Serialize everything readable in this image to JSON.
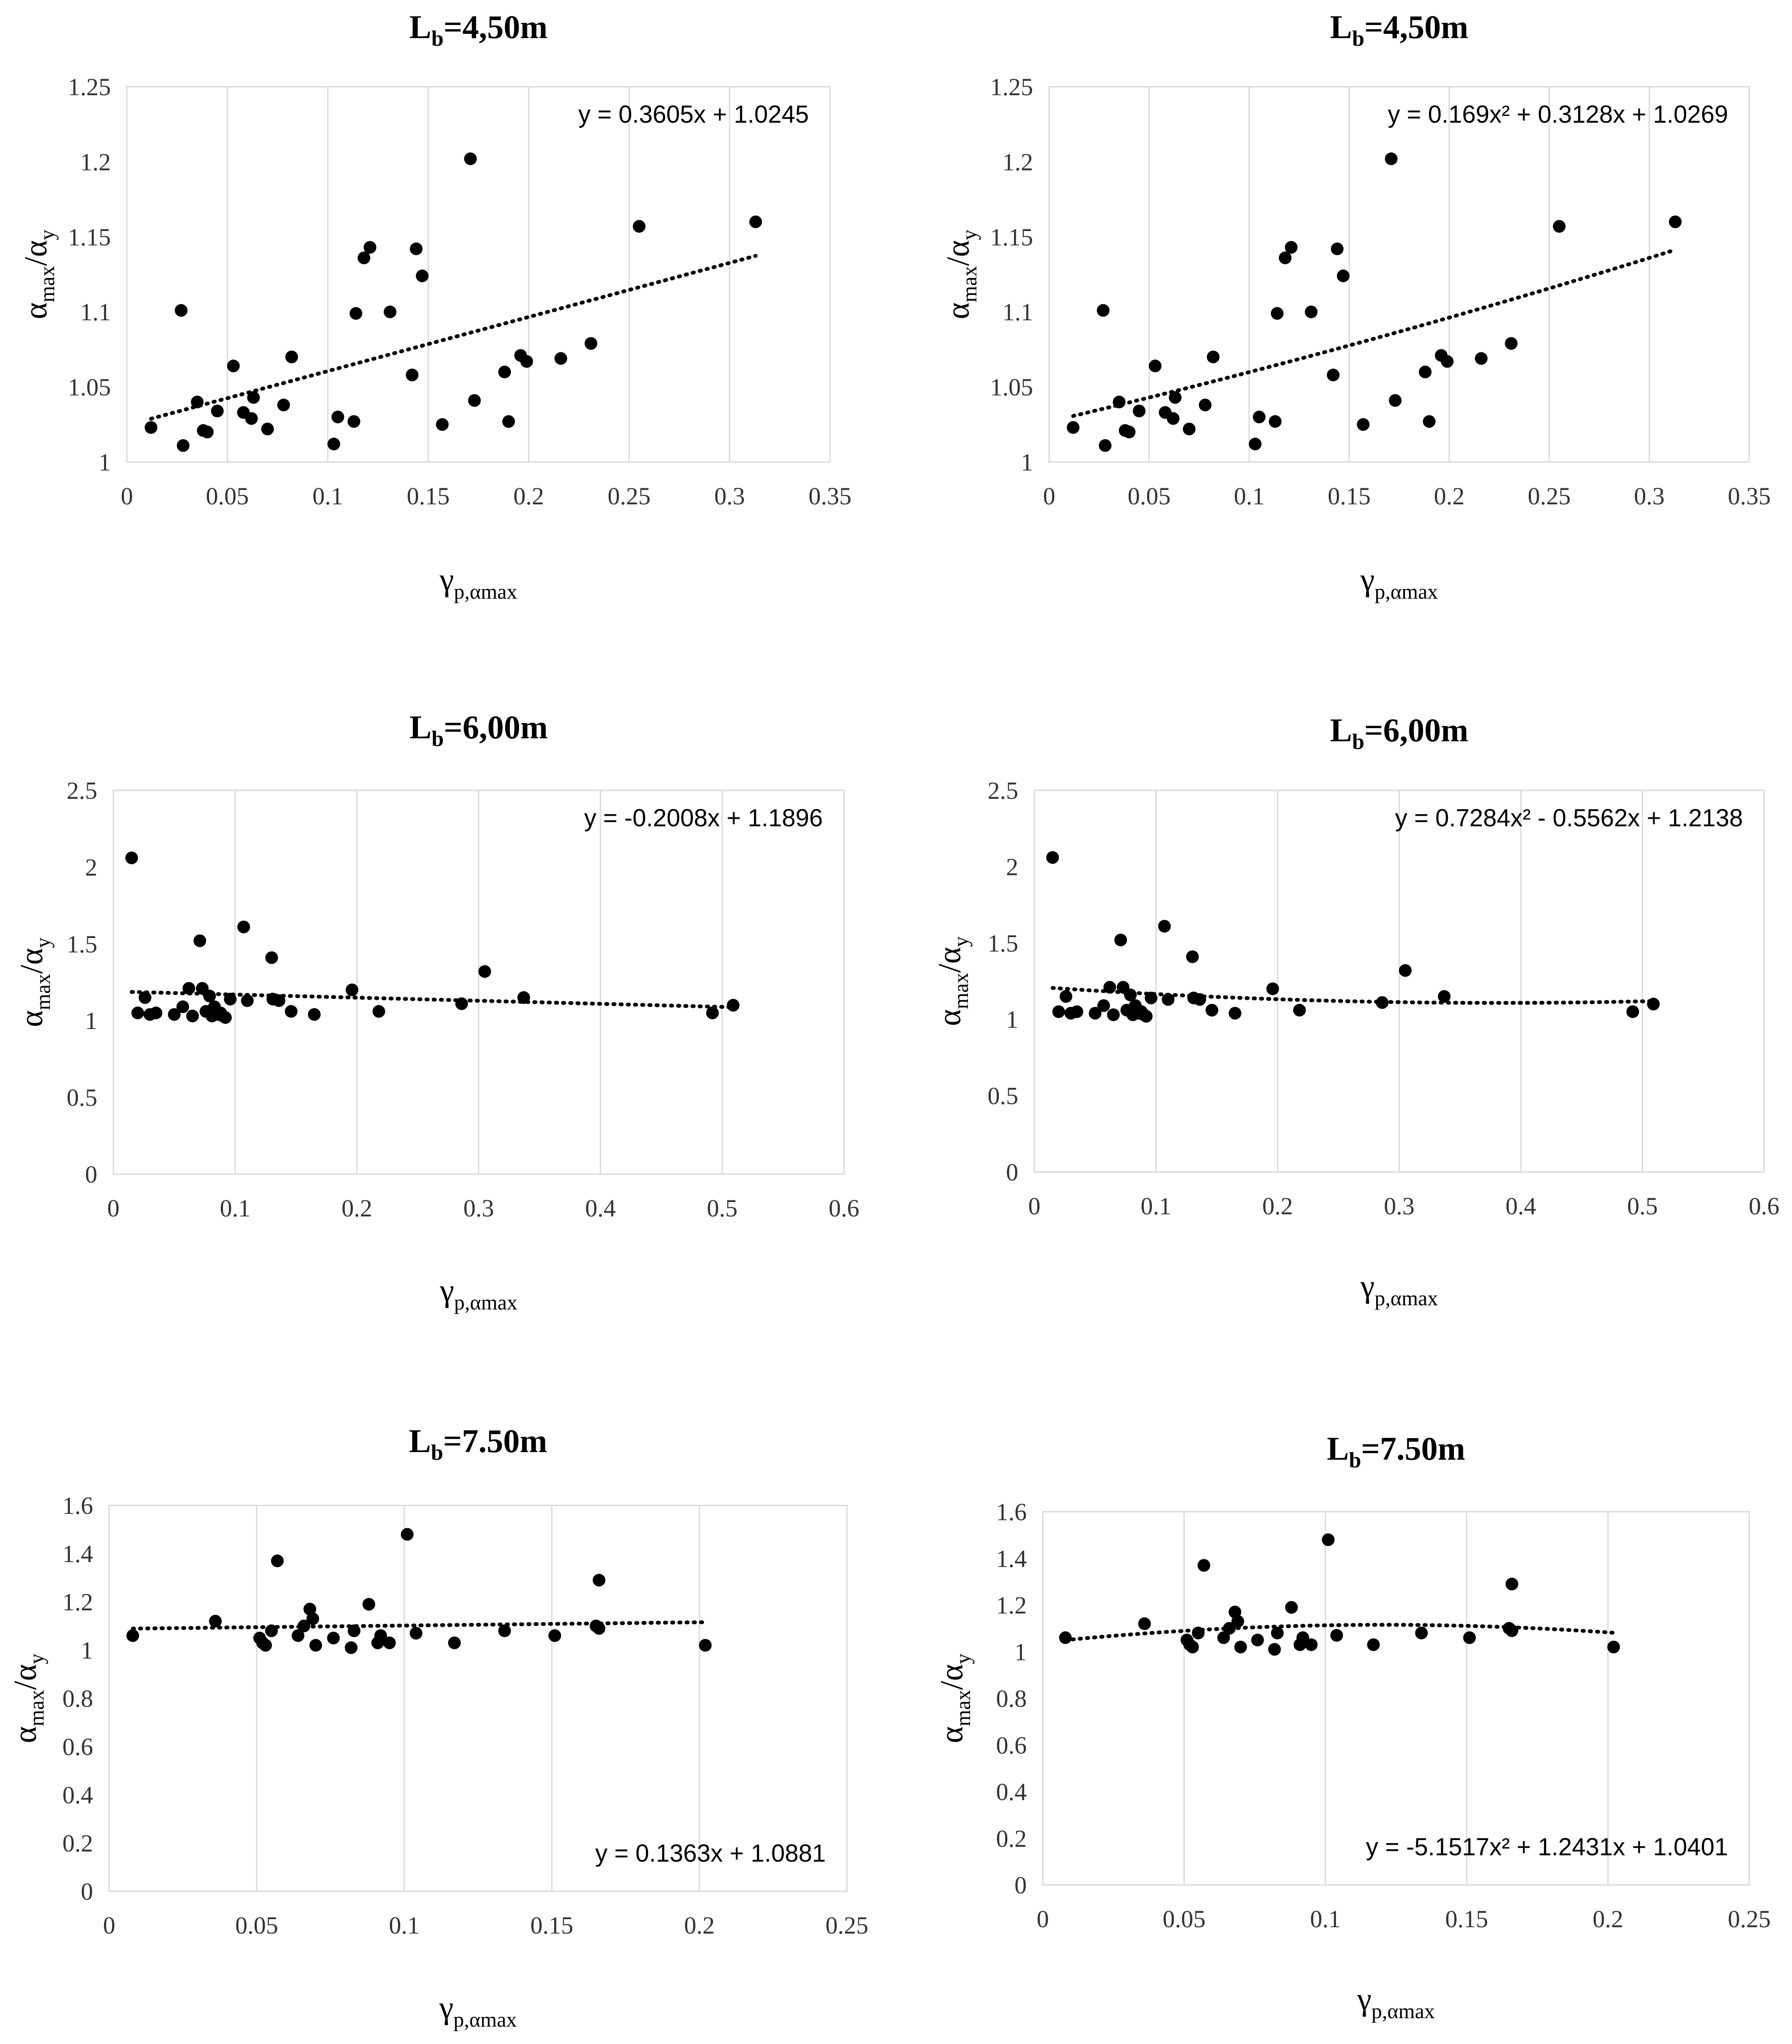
{
  "chart_data": [
    {
      "id": "lb450_linear",
      "type": "scatter",
      "title": "4,50m",
      "title_symbol": "L",
      "title_subscript": "b",
      "xlabel_symbol": "γ",
      "xlabel_subscript": "p,αmax",
      "ylabel_numerator_symbol": "α",
      "ylabel_numerator_subscript": "max",
      "ylabel_slash": "/",
      "ylabel_denominator_symbol": "α",
      "ylabel_denominator_subscript": "y",
      "xlim": [
        0,
        0.35
      ],
      "ylim": [
        1,
        1.25
      ],
      "xticks": [
        0,
        0.05,
        0.1,
        0.15,
        0.2,
        0.25,
        0.3,
        0.35
      ],
      "yticks": [
        1,
        1.05,
        1.1,
        1.15,
        1.2,
        1.25
      ],
      "xtick_labels": [
        "0",
        "0.05",
        "0.1",
        "0.15",
        "0.2",
        "0.25",
        "0.3",
        "0.35"
      ],
      "ytick_labels": [
        "1",
        "1.05",
        "1.1",
        "1.15",
        "1.2",
        "1.25"
      ],
      "grid": "vertical",
      "equation": "y = 0.3605x + 1.0245",
      "equation_position": "top-right",
      "trendline": {
        "kind": "linear",
        "coef": [
          0.3605,
          1.0245
        ],
        "x_range": [
          0.012,
          0.313
        ]
      },
      "points": [
        [
          0.012,
          1.023
        ],
        [
          0.027,
          1.101
        ],
        [
          0.028,
          1.011
        ],
        [
          0.035,
          1.04
        ],
        [
          0.038,
          1.021
        ],
        [
          0.04,
          1.02
        ],
        [
          0.045,
          1.034
        ],
        [
          0.053,
          1.064
        ],
        [
          0.058,
          1.033
        ],
        [
          0.062,
          1.029
        ],
        [
          0.063,
          1.043
        ],
        [
          0.07,
          1.022
        ],
        [
          0.078,
          1.038
        ],
        [
          0.082,
          1.07
        ],
        [
          0.103,
          1.012
        ],
        [
          0.105,
          1.03
        ],
        [
          0.113,
          1.027
        ],
        [
          0.114,
          1.099
        ],
        [
          0.118,
          1.136
        ],
        [
          0.121,
          1.143
        ],
        [
          0.131,
          1.1
        ],
        [
          0.142,
          1.058
        ],
        [
          0.144,
          1.142
        ],
        [
          0.147,
          1.124
        ],
        [
          0.157,
          1.025
        ],
        [
          0.171,
          1.202
        ],
        [
          0.173,
          1.041
        ],
        [
          0.188,
          1.06
        ],
        [
          0.19,
          1.027
        ],
        [
          0.196,
          1.071
        ],
        [
          0.199,
          1.067
        ],
        [
          0.216,
          1.069
        ],
        [
          0.231,
          1.079
        ],
        [
          0.255,
          1.157
        ],
        [
          0.313,
          1.16
        ]
      ]
    },
    {
      "id": "lb450_poly",
      "type": "scatter",
      "title": "4,50m",
      "title_symbol": "L",
      "title_subscript": "b",
      "xlabel_symbol": "γ",
      "xlabel_subscript": "p,αmax",
      "ylabel_numerator_symbol": "α",
      "ylabel_numerator_subscript": "max",
      "ylabel_slash": "/",
      "ylabel_denominator_symbol": "α",
      "ylabel_denominator_subscript": "y",
      "xlim": [
        0,
        0.35
      ],
      "ylim": [
        1,
        1.25
      ],
      "xticks": [
        0,
        0.05,
        0.1,
        0.15,
        0.2,
        0.25,
        0.3,
        0.35
      ],
      "yticks": [
        1,
        1.05,
        1.1,
        1.15,
        1.2,
        1.25
      ],
      "xtick_labels": [
        "0",
        "0.05",
        "0.1",
        "0.15",
        "0.2",
        "0.25",
        "0.3",
        "0.35"
      ],
      "ytick_labels": [
        "1",
        "1.05",
        "1.1",
        "1.15",
        "1.2",
        "1.25"
      ],
      "grid": "vertical",
      "equation": "y = 0.169x² + 0.3128x + 1.0269",
      "equation_position": "top-right",
      "trendline": {
        "kind": "poly2",
        "coef": [
          0.169,
          0.3128,
          1.0269
        ],
        "x_range": [
          0.012,
          0.313
        ]
      },
      "points": [
        [
          0.012,
          1.023
        ],
        [
          0.027,
          1.101
        ],
        [
          0.028,
          1.011
        ],
        [
          0.035,
          1.04
        ],
        [
          0.038,
          1.021
        ],
        [
          0.04,
          1.02
        ],
        [
          0.045,
          1.034
        ],
        [
          0.053,
          1.064
        ],
        [
          0.058,
          1.033
        ],
        [
          0.062,
          1.029
        ],
        [
          0.063,
          1.043
        ],
        [
          0.07,
          1.022
        ],
        [
          0.078,
          1.038
        ],
        [
          0.082,
          1.07
        ],
        [
          0.103,
          1.012
        ],
        [
          0.105,
          1.03
        ],
        [
          0.113,
          1.027
        ],
        [
          0.114,
          1.099
        ],
        [
          0.118,
          1.136
        ],
        [
          0.121,
          1.143
        ],
        [
          0.131,
          1.1
        ],
        [
          0.142,
          1.058
        ],
        [
          0.144,
          1.142
        ],
        [
          0.147,
          1.124
        ],
        [
          0.157,
          1.025
        ],
        [
          0.171,
          1.202
        ],
        [
          0.173,
          1.041
        ],
        [
          0.188,
          1.06
        ],
        [
          0.19,
          1.027
        ],
        [
          0.196,
          1.071
        ],
        [
          0.199,
          1.067
        ],
        [
          0.216,
          1.069
        ],
        [
          0.231,
          1.079
        ],
        [
          0.255,
          1.157
        ],
        [
          0.313,
          1.16
        ]
      ]
    },
    {
      "id": "lb600_linear",
      "type": "scatter",
      "title": "6,00m",
      "title_symbol": "L",
      "title_subscript": "b",
      "xlabel_symbol": "γ",
      "xlabel_subscript": "p,αmax",
      "ylabel_numerator_symbol": "α",
      "ylabel_numerator_subscript": "max",
      "ylabel_slash": "/",
      "ylabel_denominator_symbol": "α",
      "ylabel_denominator_subscript": "y",
      "xlim": [
        0,
        0.6
      ],
      "ylim": [
        0,
        2.5
      ],
      "xticks": [
        0,
        0.1,
        0.2,
        0.3,
        0.4,
        0.5,
        0.6
      ],
      "yticks": [
        0,
        0.5,
        1,
        1.5,
        2,
        2.5
      ],
      "xtick_labels": [
        "0",
        "0.1",
        "0.2",
        "0.3",
        "0.4",
        "0.5",
        "0.6"
      ],
      "ytick_labels": [
        "0",
        "0.5",
        "1",
        "1.5",
        "2",
        "2.5"
      ],
      "grid": "vertical",
      "equation": "y = -0.2008x + 1.1896",
      "equation_position": "top-right",
      "trendline": {
        "kind": "linear",
        "coef": [
          -0.2008,
          1.1896
        ],
        "x_range": [
          0.015,
          0.509
        ]
      },
      "points": [
        [
          0.015,
          2.06
        ],
        [
          0.02,
          1.05
        ],
        [
          0.026,
          1.15
        ],
        [
          0.03,
          1.04
        ],
        [
          0.035,
          1.05
        ],
        [
          0.05,
          1.04
        ],
        [
          0.057,
          1.09
        ],
        [
          0.062,
          1.21
        ],
        [
          0.065,
          1.03
        ],
        [
          0.071,
          1.52
        ],
        [
          0.073,
          1.21
        ],
        [
          0.076,
          1.06
        ],
        [
          0.079,
          1.16
        ],
        [
          0.081,
          1.03
        ],
        [
          0.083,
          1.09
        ],
        [
          0.085,
          1.04
        ],
        [
          0.088,
          1.05
        ],
        [
          0.09,
          1.03
        ],
        [
          0.092,
          1.02
        ],
        [
          0.096,
          1.14
        ],
        [
          0.107,
          1.61
        ],
        [
          0.11,
          1.13
        ],
        [
          0.13,
          1.41
        ],
        [
          0.131,
          1.14
        ],
        [
          0.136,
          1.13
        ],
        [
          0.146,
          1.06
        ],
        [
          0.165,
          1.04
        ],
        [
          0.196,
          1.2
        ],
        [
          0.218,
          1.06
        ],
        [
          0.286,
          1.11
        ],
        [
          0.305,
          1.32
        ],
        [
          0.337,
          1.15
        ],
        [
          0.492,
          1.05
        ],
        [
          0.509,
          1.1
        ]
      ]
    },
    {
      "id": "lb600_poly",
      "type": "scatter",
      "title": "6,00m",
      "title_symbol": "L",
      "title_subscript": "b",
      "xlabel_symbol": "γ",
      "xlabel_subscript": "p,αmax",
      "ylabel_numerator_symbol": "α",
      "ylabel_numerator_subscript": "max",
      "ylabel_slash": "/",
      "ylabel_denominator_symbol": "α",
      "ylabel_denominator_subscript": "y",
      "xlim": [
        0,
        0.6
      ],
      "ylim": [
        0,
        2.5
      ],
      "xticks": [
        0,
        0.1,
        0.2,
        0.3,
        0.4,
        0.5,
        0.6
      ],
      "yticks": [
        0,
        0.5,
        1,
        1.5,
        2,
        2.5
      ],
      "xtick_labels": [
        "0",
        "0.1",
        "0.2",
        "0.3",
        "0.4",
        "0.5",
        "0.6"
      ],
      "ytick_labels": [
        "0",
        "0.5",
        "1",
        "1.5",
        "2",
        "2.5"
      ],
      "grid": "vertical",
      "equation": "y = 0.7284x² - 0.5562x + 1.2138",
      "equation_position": "top-right",
      "trendline": {
        "kind": "poly2",
        "coef": [
          0.7284,
          -0.5562,
          1.2138
        ],
        "x_range": [
          0.015,
          0.509
        ]
      },
      "points": [
        [
          0.015,
          2.06
        ],
        [
          0.02,
          1.05
        ],
        [
          0.026,
          1.15
        ],
        [
          0.03,
          1.04
        ],
        [
          0.035,
          1.05
        ],
        [
          0.05,
          1.04
        ],
        [
          0.057,
          1.09
        ],
        [
          0.062,
          1.21
        ],
        [
          0.065,
          1.03
        ],
        [
          0.071,
          1.52
        ],
        [
          0.073,
          1.21
        ],
        [
          0.076,
          1.06
        ],
        [
          0.079,
          1.16
        ],
        [
          0.081,
          1.03
        ],
        [
          0.083,
          1.09
        ],
        [
          0.085,
          1.04
        ],
        [
          0.088,
          1.05
        ],
        [
          0.09,
          1.03
        ],
        [
          0.092,
          1.02
        ],
        [
          0.096,
          1.14
        ],
        [
          0.107,
          1.61
        ],
        [
          0.11,
          1.13
        ],
        [
          0.13,
          1.41
        ],
        [
          0.131,
          1.14
        ],
        [
          0.136,
          1.13
        ],
        [
          0.146,
          1.06
        ],
        [
          0.165,
          1.04
        ],
        [
          0.196,
          1.2
        ],
        [
          0.218,
          1.06
        ],
        [
          0.286,
          1.11
        ],
        [
          0.305,
          1.32
        ],
        [
          0.337,
          1.15
        ],
        [
          0.492,
          1.05
        ],
        [
          0.509,
          1.1
        ]
      ]
    },
    {
      "id": "lb750_linear",
      "type": "scatter",
      "title": "7.50m",
      "title_symbol": "L",
      "title_subscript": "b",
      "xlabel_symbol": "γ",
      "xlabel_subscript": "p,αmax",
      "ylabel_numerator_symbol": "α",
      "ylabel_numerator_subscript": "max",
      "ylabel_slash": "/",
      "ylabel_denominator_symbol": "α",
      "ylabel_denominator_subscript": "y",
      "xlim": [
        0,
        0.25
      ],
      "ylim": [
        0,
        1.6
      ],
      "xticks": [
        0,
        0.05,
        0.1,
        0.15,
        0.2,
        0.25
      ],
      "yticks": [
        0,
        0.2,
        0.4,
        0.6,
        0.8,
        1,
        1.2,
        1.4,
        1.6
      ],
      "xtick_labels": [
        "0",
        "0.05",
        "0.1",
        "0.15",
        "0.2",
        "0.25"
      ],
      "ytick_labels": [
        "0",
        "0.2",
        "0.4",
        "0.6",
        "0.8",
        "1",
        "1.2",
        "1.4",
        "1.6"
      ],
      "grid": "vertical",
      "equation": "y = 0.1363x + 1.0881",
      "equation_position": "bottom-right",
      "trendline": {
        "kind": "linear",
        "coef": [
          0.1363,
          1.0881
        ],
        "x_range": [
          0.008,
          0.202
        ]
      },
      "points": [
        [
          0.008,
          1.06
        ],
        [
          0.036,
          1.12
        ],
        [
          0.051,
          1.05
        ],
        [
          0.052,
          1.03
        ],
        [
          0.053,
          1.02
        ],
        [
          0.055,
          1.08
        ],
        [
          0.057,
          1.37
        ],
        [
          0.064,
          1.06
        ],
        [
          0.066,
          1.1
        ],
        [
          0.068,
          1.17
        ],
        [
          0.069,
          1.13
        ],
        [
          0.07,
          1.02
        ],
        [
          0.076,
          1.05
        ],
        [
          0.082,
          1.01
        ],
        [
          0.083,
          1.08
        ],
        [
          0.088,
          1.19
        ],
        [
          0.091,
          1.03
        ],
        [
          0.092,
          1.06
        ],
        [
          0.095,
          1.03
        ],
        [
          0.101,
          1.48
        ],
        [
          0.104,
          1.07
        ],
        [
          0.117,
          1.03
        ],
        [
          0.134,
          1.08
        ],
        [
          0.151,
          1.06
        ],
        [
          0.165,
          1.1
        ],
        [
          0.166,
          1.09
        ],
        [
          0.166,
          1.29
        ],
        [
          0.202,
          1.02
        ]
      ]
    },
    {
      "id": "lb750_poly",
      "type": "scatter",
      "title": "7.50m",
      "title_symbol": "L",
      "title_subscript": "b",
      "xlabel_symbol": "γ",
      "xlabel_subscript": "p,αmax",
      "ylabel_numerator_symbol": "α",
      "ylabel_numerator_subscript": "max",
      "ylabel_slash": "/",
      "ylabel_denominator_symbol": "α",
      "ylabel_denominator_subscript": "y",
      "xlim": [
        0,
        0.25
      ],
      "ylim": [
        0,
        1.6
      ],
      "xticks": [
        0,
        0.05,
        0.1,
        0.15,
        0.2,
        0.25
      ],
      "yticks": [
        0,
        0.2,
        0.4,
        0.6,
        0.8,
        1,
        1.2,
        1.4,
        1.6
      ],
      "xtick_labels": [
        "0",
        "0.05",
        "0.1",
        "0.15",
        "0.2",
        "0.25"
      ],
      "ytick_labels": [
        "0",
        "0.2",
        "0.4",
        "0.6",
        "0.8",
        "1",
        "1.2",
        "1.4",
        "1.6"
      ],
      "grid": "vertical",
      "equation": "y = -5.1517x² + 1.2431x + 1.0401",
      "equation_position": "bottom-right",
      "trendline": {
        "kind": "poly2",
        "coef": [
          -5.1517,
          1.2431,
          1.0401
        ],
        "x_range": [
          0.008,
          0.202
        ]
      },
      "points": [
        [
          0.008,
          1.06
        ],
        [
          0.036,
          1.12
        ],
        [
          0.051,
          1.05
        ],
        [
          0.052,
          1.03
        ],
        [
          0.053,
          1.02
        ],
        [
          0.055,
          1.08
        ],
        [
          0.057,
          1.37
        ],
        [
          0.064,
          1.06
        ],
        [
          0.066,
          1.1
        ],
        [
          0.068,
          1.17
        ],
        [
          0.069,
          1.13
        ],
        [
          0.07,
          1.02
        ],
        [
          0.076,
          1.05
        ],
        [
          0.082,
          1.01
        ],
        [
          0.083,
          1.08
        ],
        [
          0.088,
          1.19
        ],
        [
          0.091,
          1.03
        ],
        [
          0.092,
          1.06
        ],
        [
          0.095,
          1.03
        ],
        [
          0.101,
          1.48
        ],
        [
          0.104,
          1.07
        ],
        [
          0.117,
          1.03
        ],
        [
          0.134,
          1.08
        ],
        [
          0.151,
          1.06
        ],
        [
          0.165,
          1.1
        ],
        [
          0.166,
          1.09
        ],
        [
          0.166,
          1.29
        ],
        [
          0.202,
          1.02
        ]
      ]
    }
  ]
}
